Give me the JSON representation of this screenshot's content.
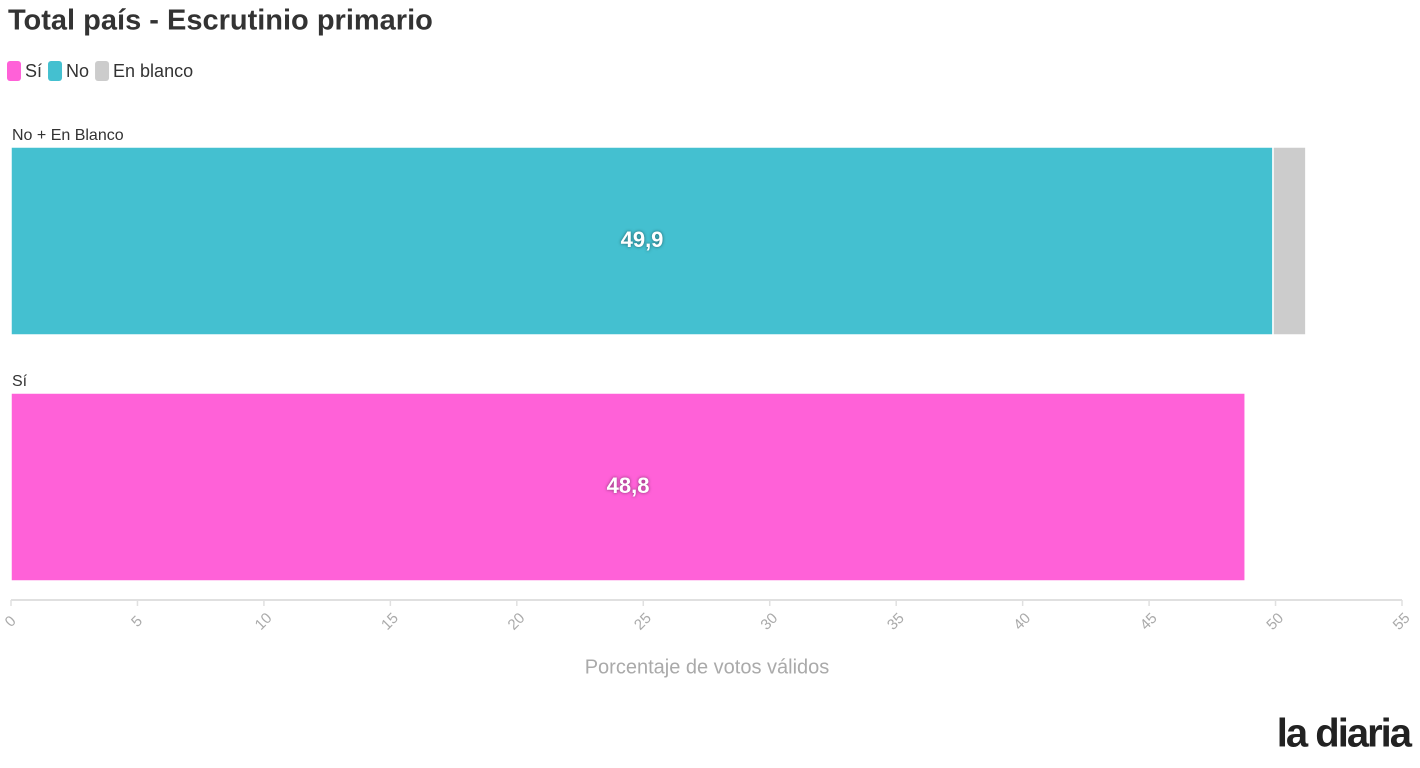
{
  "chart_data": {
    "type": "stacked-bar-horizontal",
    "title": "Total país - Escrutinio primario",
    "categories": [
      "No + En Blanco",
      "Sí"
    ],
    "series": [
      {
        "name": "Sí",
        "color": "#ff61d8",
        "values": [
          null,
          48.8
        ],
        "value_labels": [
          null,
          "48,8"
        ]
      },
      {
        "name": "No",
        "color": "#44c0d0",
        "values": [
          49.9,
          null
        ],
        "value_labels": [
          "49,9",
          null
        ]
      },
      {
        "name": "En blanco",
        "color": "#cccccc",
        "values": [
          1.3,
          null
        ]
      }
    ],
    "xlim": [
      0,
      55
    ],
    "xticks": [
      0,
      5,
      10,
      15,
      20,
      25,
      30,
      35,
      40,
      45,
      50,
      55
    ],
    "xlabel": "Porcentaje de votos válidos",
    "legend": "top-left"
  },
  "logo": "la diaria"
}
